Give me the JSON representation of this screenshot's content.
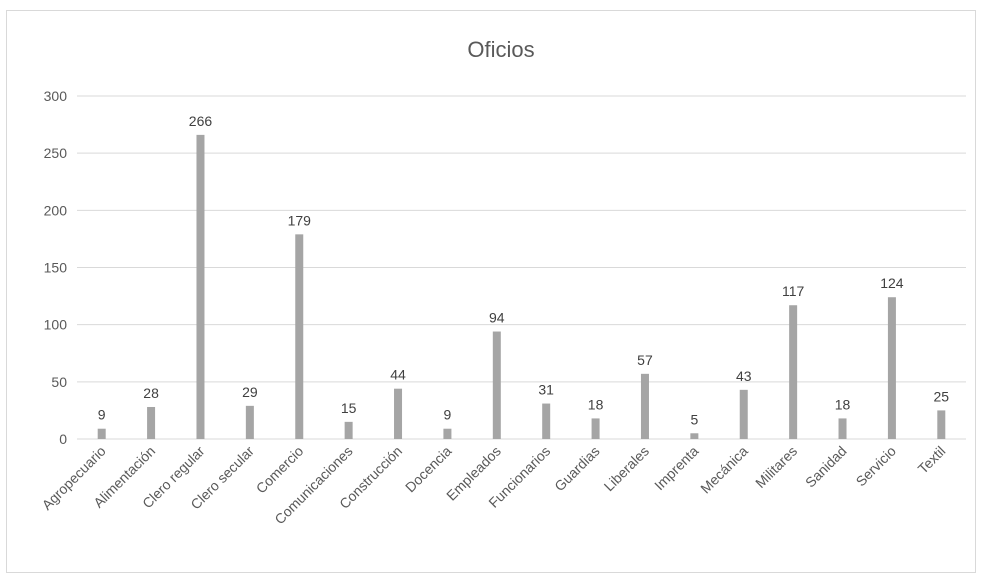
{
  "chart_data": {
    "type": "bar",
    "title": "Oficios",
    "xlabel": "",
    "ylabel": "",
    "ylim": [
      0,
      300
    ],
    "yticks": [
      0,
      50,
      100,
      150,
      200,
      250,
      300
    ],
    "grid": true,
    "legend": "none",
    "bar_color": "#a5a5a5",
    "categories": [
      "Agropecuario",
      "Alimentación",
      "Clero regular",
      "Clero secular",
      "Comercio",
      "Comunicaciones",
      "Construcción",
      "Docencia",
      "Empleados",
      "Funcionarios",
      "Guardias",
      "Liberales",
      "Imprenta",
      "Mecánica",
      "Militares",
      "Sanidad",
      "Servicio",
      "Textil"
    ],
    "values": [
      9,
      28,
      266,
      29,
      179,
      15,
      44,
      9,
      94,
      31,
      18,
      57,
      5,
      43,
      117,
      18,
      124,
      25
    ]
  }
}
